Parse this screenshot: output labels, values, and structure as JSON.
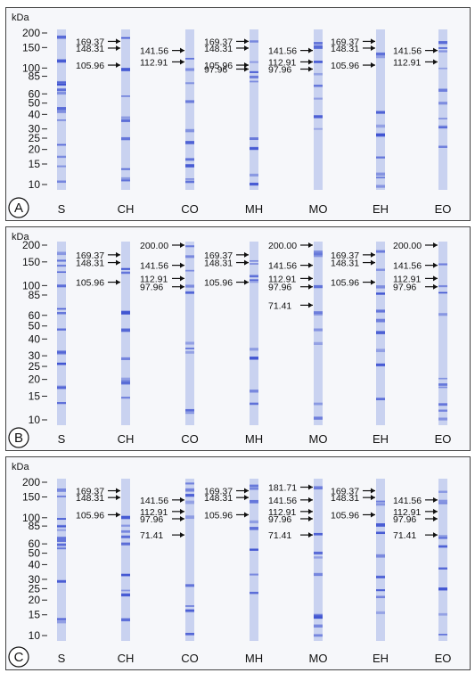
{
  "unit": "kDa",
  "ladder_ticks": [
    "200",
    "150",
    "100",
    "85",
    "60",
    "50",
    "40",
    "30",
    "25",
    "20",
    "15",
    "10"
  ],
  "lanes": [
    "S",
    "CH",
    "CO",
    "MH",
    "MO",
    "EH",
    "EO"
  ],
  "panels": [
    {
      "letter": "A",
      "annotations": [
        {
          "lane": 1,
          "side": "left",
          "labels": [
            "169.37",
            "148.31",
            "105.96"
          ]
        },
        {
          "lane": 2,
          "side": "left",
          "labels": [
            "141.56",
            "112.91"
          ]
        },
        {
          "lane": 3,
          "side": "left",
          "labels": [
            "169.37",
            "148.31",
            "105.96",
            "97.96"
          ]
        },
        {
          "lane": 4,
          "side": "left",
          "labels": [
            "141.56",
            "112.91",
            "97.96"
          ]
        },
        {
          "lane": 5,
          "side": "left",
          "labels": [
            "169.37",
            "148.31",
            "105.96"
          ]
        },
        {
          "lane": 6,
          "side": "left",
          "labels": [
            "141.56",
            "112.91"
          ]
        }
      ]
    },
    {
      "letter": "B",
      "annotations": [
        {
          "lane": 1,
          "side": "left",
          "labels": [
            "169.37",
            "148.31",
            "105.96"
          ]
        },
        {
          "lane": 2,
          "side": "left",
          "labels": [
            "200.00",
            "141.56",
            "112.91",
            "97.96"
          ]
        },
        {
          "lane": 3,
          "side": "left",
          "labels": [
            "169.37",
            "148.31",
            "105.96"
          ]
        },
        {
          "lane": 4,
          "side": "left",
          "labels": [
            "200.00",
            "141.56",
            "112.91",
            "97.96",
            "71.41"
          ]
        },
        {
          "lane": 5,
          "side": "left",
          "labels": [
            "169.37",
            "148.31",
            "105.96"
          ]
        },
        {
          "lane": 6,
          "side": "left",
          "labels": [
            "200.00",
            "141.56",
            "112.91",
            "97.96"
          ]
        }
      ]
    },
    {
      "letter": "C",
      "annotations": [
        {
          "lane": 1,
          "side": "left",
          "labels": [
            "169.37",
            "148.31",
            "105.96"
          ]
        },
        {
          "lane": 2,
          "side": "left",
          "labels": [
            "141.56",
            "112.91",
            "97.96",
            "71.41"
          ]
        },
        {
          "lane": 3,
          "side": "left",
          "labels": [
            "169.37",
            "148.31",
            "105.96"
          ]
        },
        {
          "lane": 4,
          "side": "left",
          "labels": [
            "181.71",
            "141.56",
            "112.91",
            "97.96",
            "71.41"
          ]
        },
        {
          "lane": 5,
          "side": "left",
          "labels": [
            "169.37",
            "148.31",
            "105.96"
          ]
        },
        {
          "lane": 6,
          "side": "left",
          "labels": [
            "141.56",
            "112.91",
            "97.96",
            "71.41"
          ]
        }
      ]
    }
  ],
  "colors": {
    "band": "#3a4fd0",
    "lane_bg": "#c9d2f0",
    "text": "#111111"
  }
}
